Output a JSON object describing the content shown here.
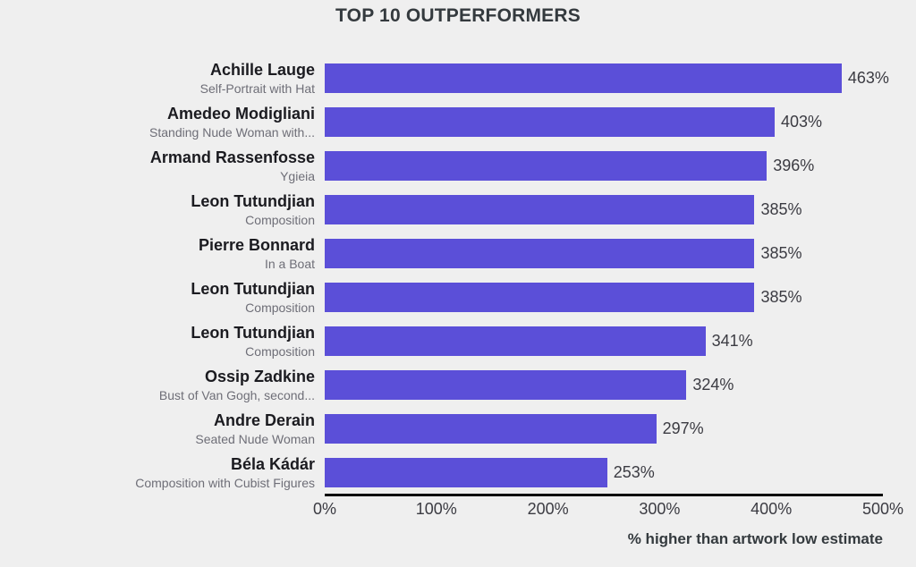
{
  "title": "TOP 10 OUTPERFORMERS",
  "caption": "% higher than artwork low estimate",
  "colors": {
    "background": "#efefef",
    "bar": "#5b4fd8",
    "title": "#343a3e",
    "artist_text": "#1b1b20",
    "artwork_text": "#6e6e77",
    "value_text": "#3b3b42",
    "axis_line": "#0b0b0b"
  },
  "chart_data": {
    "type": "bar",
    "orientation": "horizontal",
    "title": "TOP 10 OUTPERFORMERS",
    "xlabel": "% higher than artwork low estimate",
    "ylabel": "",
    "xlim": [
      0,
      500
    ],
    "grid": false,
    "legend": false,
    "x_ticks": [
      "0%",
      "100%",
      "200%",
      "300%",
      "400%",
      "500%"
    ],
    "categories": [
      "Achille Lauge — Self-Portrait with Hat",
      "Amedeo Modigliani — Standing Nude Woman with...",
      "Armand Rassenfosse — Ygieia",
      "Leon Tutundjian — Composition",
      "Pierre Bonnard — In a Boat",
      "Leon Tutundjian — Composition",
      "Leon Tutundjian — Composition",
      "Ossip Zadkine — Bust of Van Gogh, second...",
      "Andre Derain — Seated Nude Woman",
      "Béla Kádár — Composition with Cubist Figures"
    ],
    "values": [
      463,
      403,
      396,
      385,
      385,
      385,
      341,
      324,
      297,
      253
    ],
    "rows": [
      {
        "artist": "Achille Lauge",
        "artwork": "Self-Portrait with Hat",
        "value": 463,
        "value_label": "463%"
      },
      {
        "artist": "Amedeo Modigliani",
        "artwork": "Standing Nude Woman with...",
        "value": 403,
        "value_label": "403%"
      },
      {
        "artist": "Armand Rassenfosse",
        "artwork": "Ygieia",
        "value": 396,
        "value_label": "396%"
      },
      {
        "artist": "Leon Tutundjian",
        "artwork": "Composition",
        "value": 385,
        "value_label": "385%"
      },
      {
        "artist": "Pierre Bonnard",
        "artwork": "In a Boat",
        "value": 385,
        "value_label": "385%"
      },
      {
        "artist": "Leon Tutundjian",
        "artwork": "Composition",
        "value": 385,
        "value_label": "385%"
      },
      {
        "artist": "Leon Tutundjian",
        "artwork": "Composition",
        "value": 341,
        "value_label": "341%"
      },
      {
        "artist": "Ossip Zadkine",
        "artwork": "Bust of Van Gogh, second...",
        "value": 324,
        "value_label": "324%"
      },
      {
        "artist": "Andre Derain",
        "artwork": "Seated Nude Woman",
        "value": 297,
        "value_label": "297%"
      },
      {
        "artist": "Béla Kádár",
        "artwork": "Composition with Cubist Figures",
        "value": 253,
        "value_label": "253%"
      }
    ]
  }
}
